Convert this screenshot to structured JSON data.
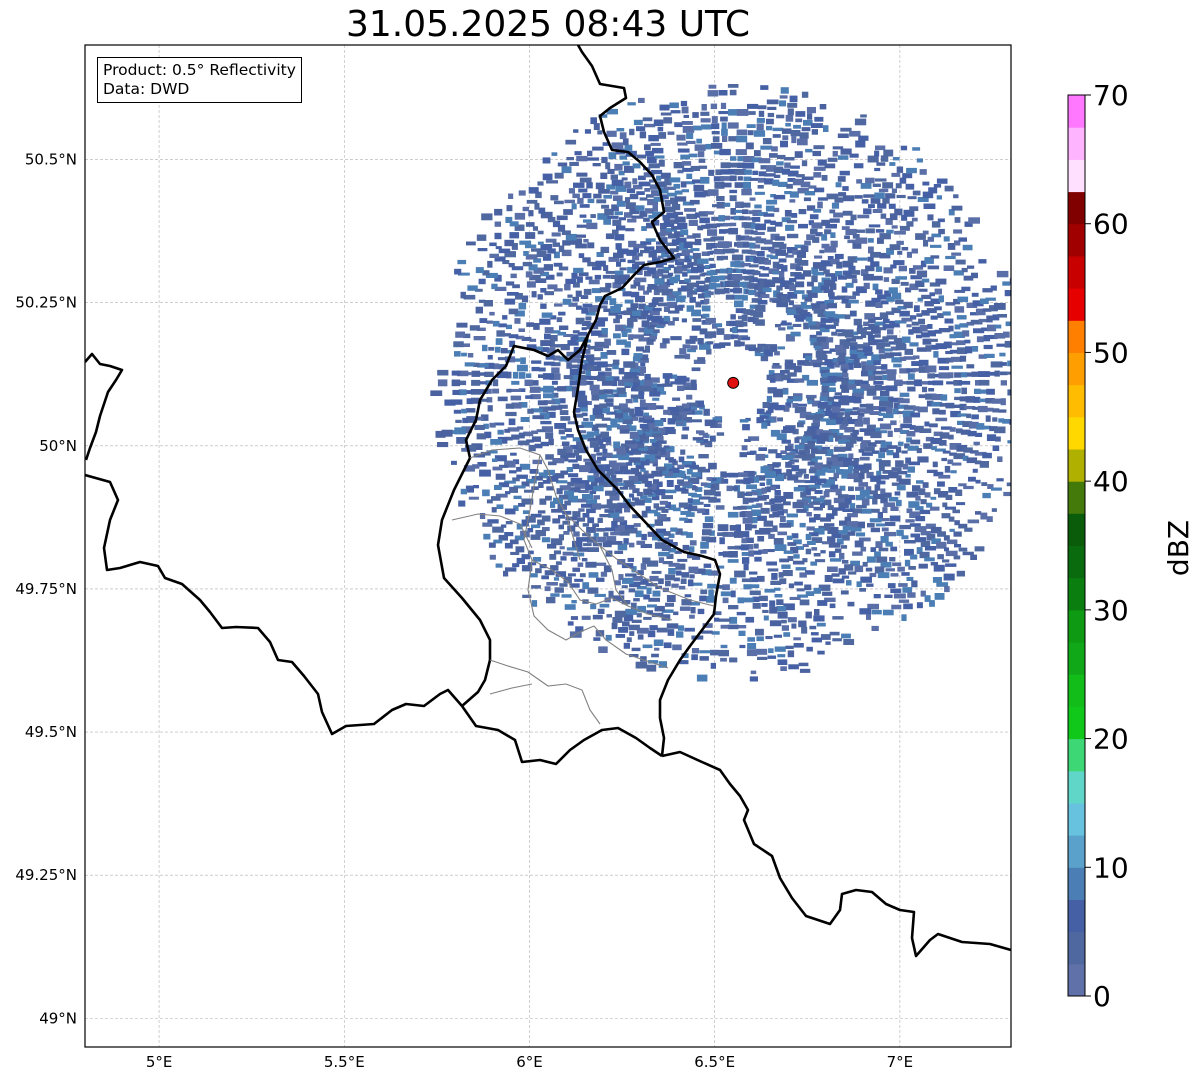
{
  "title": "31.05.2025 08:43 UTC",
  "info_box": {
    "product": "Product: 0.5° Reflectivity",
    "data": "Data: DWD"
  },
  "map": {
    "projection": "PlateCarree",
    "lon_range": [
      4.8,
      7.3
    ],
    "lat_range": [
      48.95,
      50.7
    ],
    "gridlines": true,
    "lon_ticks": [
      {
        "value": 5.0,
        "label": "5°E"
      },
      {
        "value": 5.5,
        "label": "5.5°E"
      },
      {
        "value": 6.0,
        "label": "6°E"
      },
      {
        "value": 6.5,
        "label": "6.5°E"
      },
      {
        "value": 7.0,
        "label": "7°E"
      }
    ],
    "lat_ticks": [
      {
        "value": 50.5,
        "label": "50.5°N"
      },
      {
        "value": 50.25,
        "label": "50.25°N"
      },
      {
        "value": 50.0,
        "label": "50°N"
      },
      {
        "value": 49.75,
        "label": "49.75°N"
      },
      {
        "value": 49.5,
        "label": "49.5°N"
      },
      {
        "value": 49.25,
        "label": "49.25°N"
      },
      {
        "value": 49.0,
        "label": "49°N"
      }
    ],
    "radar_site": {
      "lon": 6.55,
      "lat": 50.11,
      "color": "#e01010"
    },
    "echo_coverage": {
      "center_lon": 6.55,
      "center_lat": 50.11,
      "max_range_deg_lon": 0.82,
      "max_range_deg_lat": 0.53,
      "dominant_dbz_range": [
        0,
        10
      ],
      "echo_color": "#4a63a0"
    }
  },
  "colorbar": {
    "label": "dBZ",
    "min": 0,
    "max": 70,
    "step": 2.5,
    "colors": [
      "#6070a8",
      "#5068a0",
      "#4560a5",
      "#4a7eb5",
      "#5aa2cb",
      "#66c2df",
      "#60d6c8",
      "#3dd875",
      "#10c81a",
      "#12bd1a",
      "#10a818",
      "#0e9a12",
      "#0a7f10",
      "#0a6a0e",
      "#0a5c0a",
      "#447a0a",
      "#b0b000",
      "#ffd800",
      "#ffbc00",
      "#ff9e00",
      "#ff8000",
      "#e60000",
      "#c80000",
      "#a00000",
      "#800000",
      "#ffe0ff",
      "#ffb4ff",
      "#ff78ff",
      "#e840f0"
    ],
    "ticks": [
      {
        "value": 0,
        "label": "0"
      },
      {
        "value": 10,
        "label": "10"
      },
      {
        "value": 20,
        "label": "20"
      },
      {
        "value": 30,
        "label": "30"
      },
      {
        "value": 40,
        "label": "40"
      },
      {
        "value": 50,
        "label": "50"
      },
      {
        "value": 60,
        "label": "60"
      },
      {
        "value": 70,
        "label": "70"
      }
    ]
  }
}
